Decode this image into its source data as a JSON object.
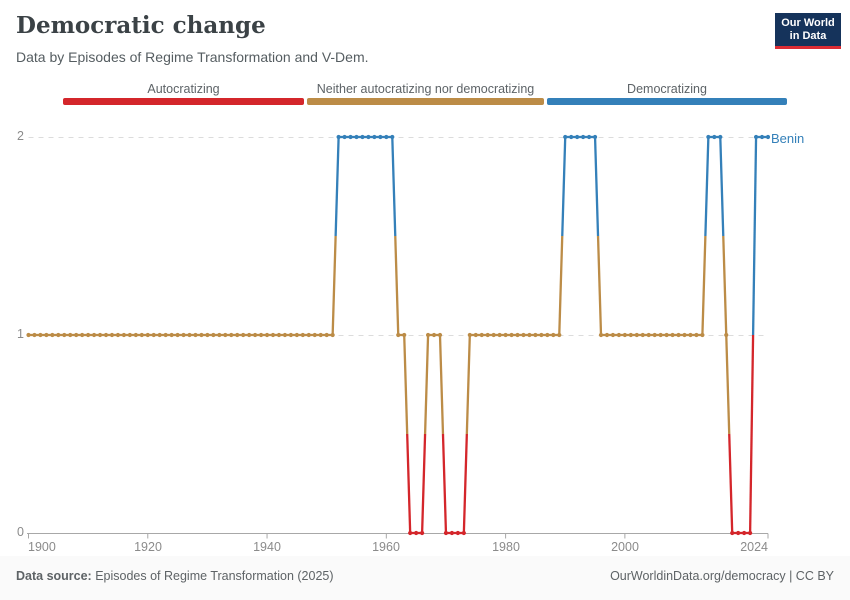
{
  "header": {
    "title": "Democratic change",
    "subtitle": "Data by Episodes of Regime Transformation and V-Dem.",
    "logo": {
      "line1": "Our World",
      "line2": "in Data"
    }
  },
  "legend": {
    "items": [
      {
        "label": "Autocratizing",
        "color": "#d4262b"
      },
      {
        "label": "Neither autocratizing nor democratizing",
        "color": "#bc8c47"
      },
      {
        "label": "Democratizing",
        "color": "#3480b9"
      }
    ]
  },
  "chart_data": {
    "type": "line",
    "title": "Democratic change",
    "entity_label": "Benin",
    "xlabel": "",
    "ylabel": "",
    "x_range": [
      1900,
      2024
    ],
    "ylim": [
      0,
      2
    ],
    "y_ticks": [
      0,
      1,
      2
    ],
    "x_ticks": [
      1900,
      1920,
      1940,
      1960,
      1980,
      2000,
      2024
    ],
    "grid": "dashed horizontal gridlines at y=1 and y=2, solid baseline at y=0",
    "legend_position": "top",
    "value_colors": {
      "0": "#d4262b",
      "1": "#bc8c47",
      "2": "#3480b9"
    },
    "value_meanings": {
      "0": "Autocratizing",
      "1": "Neither autocratizing nor democratizing",
      "2": "Democratizing"
    },
    "series": [
      {
        "name": "Benin",
        "segments_year_start_end_value": [
          [
            1900,
            1951,
            1
          ],
          [
            1952,
            1961,
            2
          ],
          [
            1962,
            1963,
            1
          ],
          [
            1964,
            1966,
            0
          ],
          [
            1967,
            1969,
            1
          ],
          [
            1970,
            1973,
            0
          ],
          [
            1974,
            1989,
            1
          ],
          [
            1990,
            1995,
            2
          ],
          [
            1996,
            2013,
            1
          ],
          [
            2014,
            2016,
            2
          ],
          [
            2017,
            2017,
            1
          ],
          [
            2018,
            2021,
            0
          ],
          [
            2022,
            2024,
            2
          ]
        ]
      }
    ]
  },
  "footer": {
    "source_label": "Data source:",
    "source_value": " Episodes of Regime Transformation (2025)",
    "right_text": "OurWorldinData.org/democracy | CC BY"
  }
}
